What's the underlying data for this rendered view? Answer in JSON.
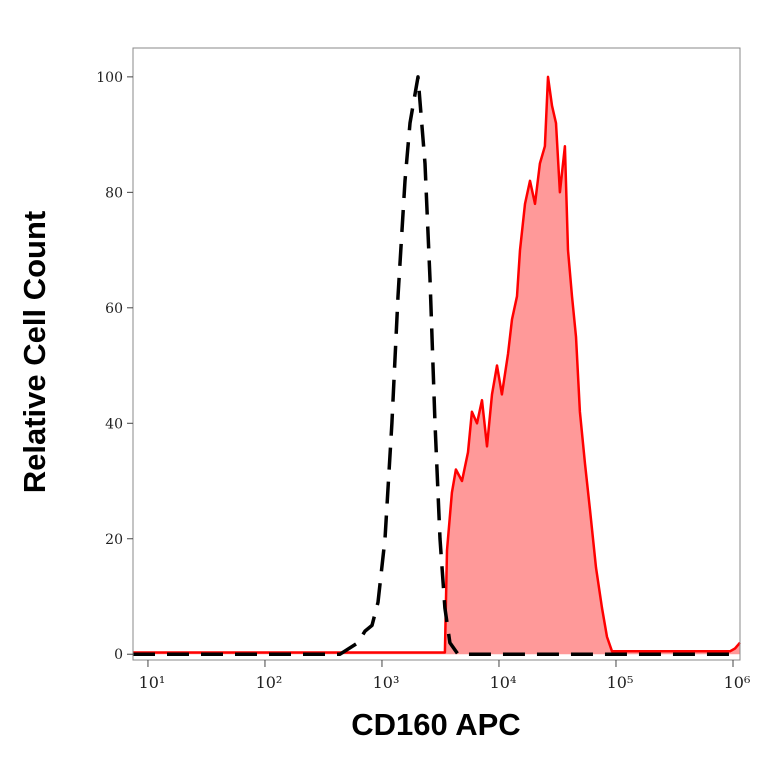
{
  "chart_data": {
    "type": "histogram-overlay",
    "x_label": "CD160 APC",
    "y_label": "Relative Cell Count",
    "x_scale": "log",
    "xlim": [
      7.45,
      1148000
    ],
    "ylim": [
      -1,
      105
    ],
    "xticks": [
      {
        "value": 10,
        "label": "10¹"
      },
      {
        "value": 100,
        "label": "10²"
      },
      {
        "value": 1000,
        "label": "10³"
      },
      {
        "value": 10000,
        "label": "10⁴"
      },
      {
        "value": 100000,
        "label": "10⁵"
      },
      {
        "value": 1000000,
        "label": "10⁶"
      }
    ],
    "yticks": [
      0,
      20,
      40,
      60,
      80,
      100
    ],
    "series": [
      {
        "color": "#ff0000",
        "fill": "#ff9999",
        "dashed": false,
        "x": [
          7.45,
          3453,
          3594,
          3963,
          4287,
          4828,
          5433,
          5875,
          6486,
          7160,
          7895,
          8710,
          9610,
          10600,
          11940,
          12920,
          14260,
          15110,
          16680,
          18400,
          20300,
          22390,
          24710,
          26240,
          28380,
          30700,
          33190,
          36620,
          38890,
          42070,
          45500,
          49200,
          54300,
          59950,
          67450,
          75900,
          83800,
          92500,
          942000,
          1040000,
          1148000
        ],
        "values": [
          0.3,
          0.3,
          18,
          28,
          32,
          30,
          35,
          42,
          40,
          44,
          36,
          45,
          50,
          45,
          52,
          58,
          62,
          70,
          78,
          82,
          78,
          85,
          88,
          100,
          95,
          92,
          80,
          88,
          70,
          62,
          55,
          42,
          33,
          25,
          15,
          8,
          3,
          0.5,
          0.5,
          1,
          2
        ]
      },
      {
        "color": "#000000",
        "fill": "none",
        "dashed": true,
        "x": [
          7.45,
          438,
          624,
          716,
          822,
          925,
          1062,
          1217,
          1370,
          1573,
          1735,
          2031,
          2333,
          2572,
          2838,
          3131,
          3453,
          3810,
          4463,
          108000,
          1148000
        ],
        "values": [
          0,
          0,
          2,
          4,
          5,
          9,
          20,
          40,
          62,
          82,
          92,
          100,
          85,
          65,
          40,
          20,
          8,
          2,
          0,
          0,
          0
        ]
      }
    ]
  }
}
